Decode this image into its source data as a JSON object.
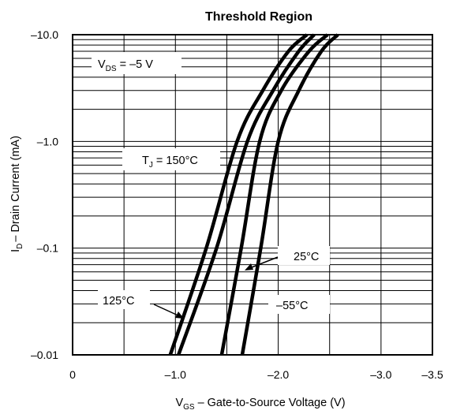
{
  "chart_data": {
    "type": "line",
    "title": "Threshold Region",
    "xlabel": {
      "symbol": "V",
      "sub": "GS",
      "text": "–  Gate-to-Source Voltage (V)"
    },
    "ylabel": {
      "symbol": "I",
      "sub": "D",
      "text": "– Drain Current (mA)"
    },
    "x_scale": "linear",
    "y_scale": "log",
    "xlim": [
      0,
      -3.5
    ],
    "ylim": [
      -0.01,
      -10.0
    ],
    "x_ticks": [
      {
        "value": 0,
        "label": "0"
      },
      {
        "value": -1.0,
        "label": "–1.0"
      },
      {
        "value": -2.0,
        "label": "–2.0"
      },
      {
        "value": -3.0,
        "label": "–3.0"
      },
      {
        "value": -3.5,
        "label": "–3.5"
      }
    ],
    "y_ticks": [
      {
        "value": -10.0,
        "label": "–10.0"
      },
      {
        "value": -1.0,
        "label": "–1.0"
      },
      {
        "value": -0.1,
        "label": "–0.1"
      },
      {
        "value": -0.01,
        "label": "–0.01"
      }
    ],
    "grid": true,
    "condition": {
      "symbol": "V",
      "sub": "DS",
      "text": " = –5 V"
    },
    "series": [
      {
        "name": "150°C",
        "label_symbol": "T",
        "label_sub": "J",
        "label_text": " = 150°C",
        "x": [
          -0.95,
          -1.3,
          -1.6,
          -1.85,
          -2.1,
          -2.28
        ],
        "y": [
          -0.01,
          -0.1,
          -1.0,
          -3.0,
          -7.0,
          -10.0
        ]
      },
      {
        "name": "125°C",
        "label_text": "125°C",
        "x": [
          -1.03,
          -1.4,
          -1.7,
          -1.95,
          -2.2,
          -2.35
        ],
        "y": [
          -0.01,
          -0.1,
          -1.0,
          -3.0,
          -7.0,
          -10.0
        ]
      },
      {
        "name": "25°C",
        "label_text": "25°C",
        "x": [
          -1.45,
          -1.64,
          -1.82,
          -2.03,
          -2.3,
          -2.48
        ],
        "y": [
          -0.01,
          -0.1,
          -1.0,
          -3.0,
          -7.0,
          -10.0
        ]
      },
      {
        "name": "–55°C",
        "label_text": "–55°C",
        "x": [
          -1.65,
          -1.83,
          -2.0,
          -2.2,
          -2.42,
          -2.58
        ],
        "y": [
          -0.01,
          -0.1,
          -1.0,
          -3.0,
          -7.0,
          -10.0
        ]
      }
    ]
  }
}
